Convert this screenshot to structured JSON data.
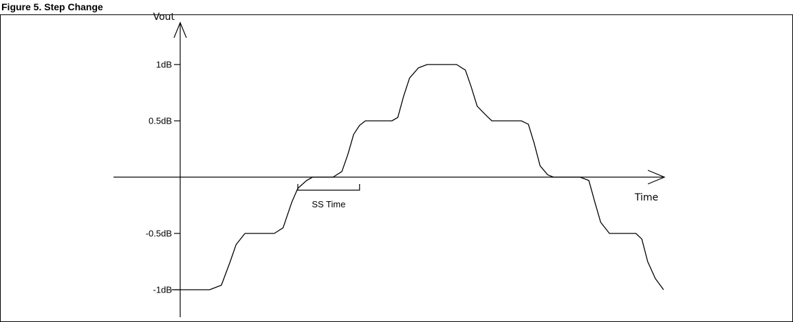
{
  "figure": {
    "caption": "Figure 5. Step Change"
  },
  "chart_data": {
    "type": "line",
    "title": "",
    "xlabel": "Time",
    "ylabel": "Vout",
    "ylim": [
      -1,
      1
    ],
    "y_ticks": [
      {
        "value": 1,
        "label": "1dB"
      },
      {
        "value": 0.5,
        "label": "0.5dB"
      },
      {
        "value": -0.5,
        "label": "-0.5dB"
      },
      {
        "value": -1,
        "label": "-1dB"
      }
    ],
    "annotation": {
      "label": "SS Time",
      "x_start": 2.0,
      "x_end": 3.05
    },
    "xlim": [
      0,
      8.3
    ],
    "grid": false,
    "legend": "none",
    "series": [
      {
        "points": [
          [
            -0.15,
            -1
          ],
          [
            0.5,
            -1
          ],
          [
            0.7,
            -0.96
          ],
          [
            0.85,
            -0.75
          ],
          [
            0.95,
            -0.6
          ],
          [
            1.1,
            -0.5
          ],
          [
            1.6,
            -0.5
          ],
          [
            1.75,
            -0.45
          ],
          [
            1.9,
            -0.22
          ],
          [
            2.0,
            -0.1
          ],
          [
            2.15,
            -0.03
          ],
          [
            2.25,
            0
          ],
          [
            2.6,
            0
          ],
          [
            2.75,
            0.05
          ],
          [
            2.85,
            0.2
          ],
          [
            2.95,
            0.38
          ],
          [
            3.05,
            0.46
          ],
          [
            3.15,
            0.5
          ],
          [
            3.6,
            0.5
          ],
          [
            3.7,
            0.53
          ],
          [
            3.8,
            0.72
          ],
          [
            3.9,
            0.88
          ],
          [
            4.05,
            0.97
          ],
          [
            4.2,
            1
          ],
          [
            4.7,
            1
          ],
          [
            4.85,
            0.95
          ],
          [
            4.95,
            0.8
          ],
          [
            5.05,
            0.63
          ],
          [
            5.2,
            0.55
          ],
          [
            5.3,
            0.5
          ],
          [
            5.8,
            0.5
          ],
          [
            5.92,
            0.47
          ],
          [
            6.02,
            0.3
          ],
          [
            6.12,
            0.1
          ],
          [
            6.25,
            0.02
          ],
          [
            6.35,
            0
          ],
          [
            6.8,
            0
          ],
          [
            6.95,
            -0.03
          ],
          [
            7.05,
            -0.22
          ],
          [
            7.15,
            -0.4
          ],
          [
            7.3,
            -0.5
          ],
          [
            7.75,
            -0.5
          ],
          [
            7.85,
            -0.55
          ],
          [
            7.95,
            -0.75
          ],
          [
            8.08,
            -0.9
          ],
          [
            8.22,
            -1
          ]
        ]
      }
    ]
  }
}
